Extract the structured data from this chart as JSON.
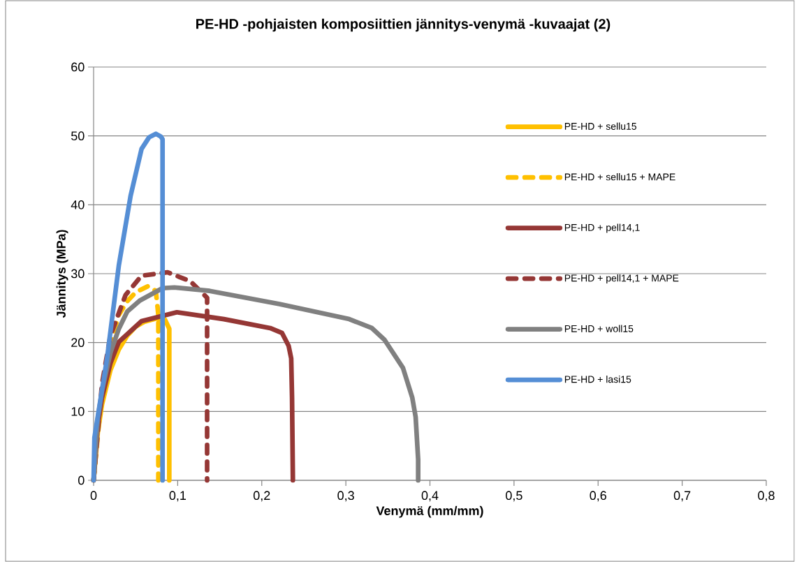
{
  "chart_data": {
    "type": "line",
    "title": "PE-HD -pohjaisten komposiittien jännitys-venymä -kuvaajat (2)",
    "xlabel": "Venymä (mm/mm)",
    "ylabel": "Jännitys (MPa)",
    "xlim": [
      0,
      0.8
    ],
    "ylim": [
      0,
      60
    ],
    "xticks": [
      0,
      {
        "value": 0.1,
        "label": "0,1"
      },
      {
        "value": 0.2,
        "label": "0,2"
      },
      {
        "value": 0.3,
        "label": "0,3"
      },
      {
        "value": 0.4,
        "label": "0,4"
      },
      {
        "value": 0.5,
        "label": "0,5"
      },
      {
        "value": 0.6,
        "label": "0,6"
      },
      {
        "value": 0.7,
        "label": "0,7"
      },
      {
        "value": 0.8,
        "label": "0,8"
      }
    ],
    "yticks": [
      0,
      10,
      20,
      30,
      40,
      50,
      60
    ],
    "grid": "y",
    "legend": "right",
    "series": [
      {
        "name": "PE-HD + sellu15",
        "color": "#ffc000",
        "line_style": "solid",
        "x": [
          0,
          0.005,
          0.01,
          0.02,
          0.03,
          0.04,
          0.05,
          0.06,
          0.075,
          0.085,
          0.09,
          0.09
        ],
        "values": [
          0,
          7,
          11,
          16,
          19,
          21,
          22.3,
          23,
          23.5,
          23.3,
          22,
          0
        ]
      },
      {
        "name": "PE-HD + sellu15 + MAPE",
        "color": "#ffc000",
        "line_style": "dashed",
        "x": [
          0,
          0.01,
          0.02,
          0.03,
          0.04,
          0.05,
          0.065,
          0.074,
          0.077,
          0.077
        ],
        "values": [
          0,
          13,
          20,
          24,
          26,
          27.3,
          28.2,
          27.5,
          24,
          0
        ]
      },
      {
        "name": "PE-HD + pell14,1",
        "color": "#953735",
        "line_style": "solid",
        "x": [
          0,
          0.005,
          0.01,
          0.02,
          0.03,
          0.057,
          0.099,
          0.155,
          0.21,
          0.224,
          0.232,
          0.235,
          0.236,
          0.237
        ],
        "values": [
          0,
          8,
          12,
          17,
          20.1,
          23.1,
          24.4,
          23.4,
          22.1,
          21.4,
          19.5,
          17.7,
          12,
          0
        ]
      },
      {
        "name": "PE-HD + pell14,1 + MAPE",
        "color": "#953735",
        "line_style": "dashed",
        "x": [
          0,
          0.01,
          0.02,
          0.038,
          0.057,
          0.088,
          0.115,
          0.135,
          0.135
        ],
        "values": [
          0,
          14,
          21,
          26.9,
          29.7,
          30.2,
          28.9,
          26.5,
          0
        ]
      },
      {
        "name": "PE-HD + woll15",
        "color": "#808080",
        "line_style": "solid",
        "x": [
          0,
          0.005,
          0.01,
          0.02,
          0.03,
          0.04,
          0.055,
          0.082,
          0.096,
          0.138,
          0.221,
          0.304,
          0.331,
          0.346,
          0.368,
          0.379,
          0.383,
          0.386,
          0.386
        ],
        "values": [
          0,
          9,
          13,
          18.5,
          22,
          24.5,
          26.1,
          27.9,
          28,
          27.5,
          25.6,
          23.4,
          22.1,
          20.4,
          16.3,
          12,
          9.2,
          3,
          0
        ]
      },
      {
        "name": "PE-HD + lasi15",
        "color": "#558ed5",
        "line_style": "solid",
        "x": [
          0,
          0.001,
          0.016,
          0.03,
          0.044,
          0.057,
          0.066,
          0.074,
          0.08,
          0.082,
          0.082
        ],
        "values": [
          0,
          6.2,
          17.7,
          31.2,
          41.3,
          48.1,
          49.8,
          50.3,
          49.9,
          49.5,
          0
        ]
      }
    ]
  }
}
